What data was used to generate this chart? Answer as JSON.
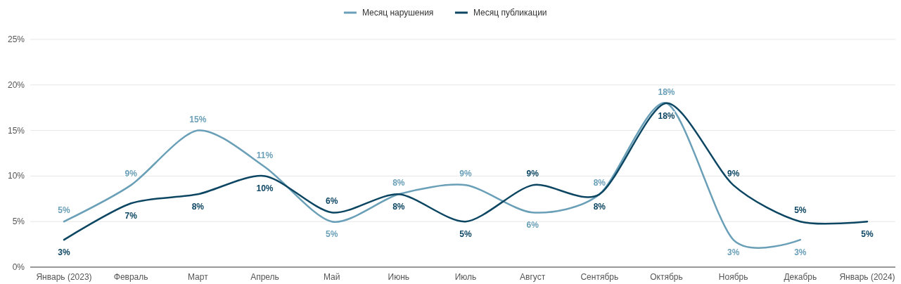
{
  "chart_data": {
    "type": "line",
    "categories": [
      "Январь (2023)",
      "Февраль",
      "Март",
      "Апрель",
      "Май",
      "Июнь",
      "Июль",
      "Август",
      "Сентябрь",
      "Октябрь",
      "Ноябрь",
      "Декабрь",
      "Январь (2024)"
    ],
    "series": [
      {
        "name": "Месяц нарушения",
        "color": "#6a9fb8",
        "values": [
          5,
          9,
          15,
          11,
          5,
          8,
          9,
          6,
          8,
          18,
          3,
          3,
          null
        ],
        "value_labels": [
          "5%",
          "9%",
          "15%",
          "11%",
          "5%",
          "8%",
          "9%",
          "6%",
          "8%",
          "18%",
          "3%",
          "3%",
          null
        ]
      },
      {
        "name": "Месяц публикации",
        "color": "#0c4662",
        "values": [
          3,
          7,
          8,
          10,
          6,
          8,
          5,
          9,
          8,
          18,
          9,
          5,
          5
        ],
        "value_labels": [
          "3%",
          "7%",
          "8%",
          "10%",
          "6%",
          "8%",
          "5%",
          "9%",
          "8%",
          "18%",
          "9%",
          "5%",
          "5%"
        ]
      }
    ],
    "ylim": [
      0,
      25
    ],
    "yticks": [
      {
        "value": 0,
        "label": "0%"
      },
      {
        "value": 5,
        "label": "5%"
      },
      {
        "value": 10,
        "label": "10%"
      },
      {
        "value": 15,
        "label": "15%"
      },
      {
        "value": 20,
        "label": "20%"
      },
      {
        "value": 25,
        "label": "25%"
      }
    ],
    "grid": "y",
    "legend": "top",
    "marker": "none",
    "line_style": "solid"
  }
}
